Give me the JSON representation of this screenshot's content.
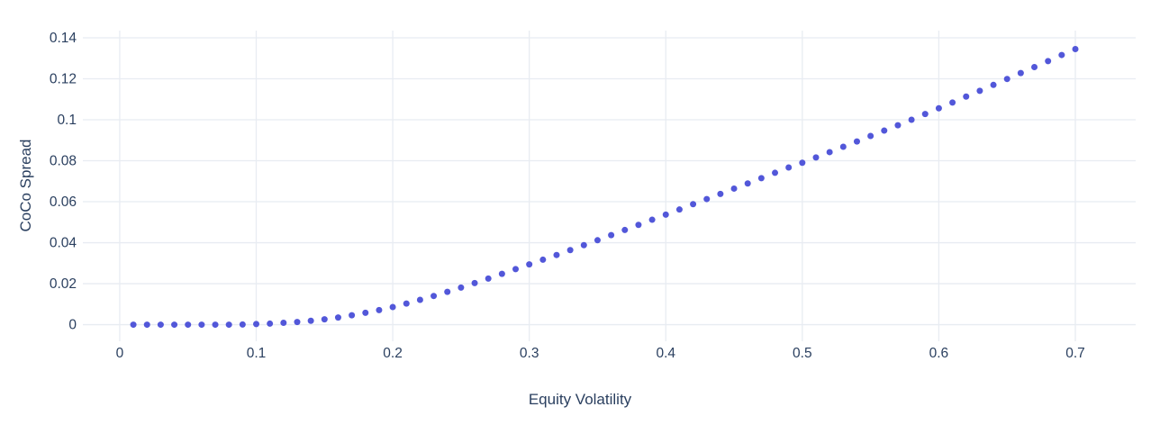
{
  "chart_data": {
    "type": "scatter",
    "title": "",
    "xlabel": "Equity Volatility",
    "ylabel": "CoCo Spread",
    "x": [
      0.01,
      0.02,
      0.03,
      0.04,
      0.05,
      0.06,
      0.07,
      0.08,
      0.09,
      0.1,
      0.11,
      0.12,
      0.13,
      0.14,
      0.15,
      0.16,
      0.17,
      0.18,
      0.19,
      0.2,
      0.21,
      0.22,
      0.23,
      0.24,
      0.25,
      0.26,
      0.27,
      0.28,
      0.29,
      0.3,
      0.31,
      0.32,
      0.33,
      0.34,
      0.35,
      0.36,
      0.37,
      0.38,
      0.39,
      0.4,
      0.41,
      0.42,
      0.43,
      0.44,
      0.45,
      0.46,
      0.47,
      0.48,
      0.49,
      0.5,
      0.51,
      0.52,
      0.53,
      0.54,
      0.55,
      0.56,
      0.57,
      0.58,
      0.59,
      0.6,
      0.61,
      0.62,
      0.63,
      0.64,
      0.65,
      0.66,
      0.67,
      0.68,
      0.69,
      0.7
    ],
    "y": [
      0,
      0,
      0,
      0,
      0,
      0,
      0,
      0,
      0.0001,
      0.0003,
      0.0005,
      0.0009,
      0.0013,
      0.0019,
      0.0026,
      0.0035,
      0.0046,
      0.0058,
      0.0071,
      0.0086,
      0.0103,
      0.0121,
      0.014,
      0.016,
      0.0181,
      0.0203,
      0.0225,
      0.0248,
      0.0271,
      0.0294,
      0.0317,
      0.034,
      0.0364,
      0.0388,
      0.0412,
      0.0437,
      0.0462,
      0.0487,
      0.0512,
      0.0537,
      0.0562,
      0.0588,
      0.0613,
      0.0638,
      0.0664,
      0.0689,
      0.0715,
      0.0741,
      0.0767,
      0.079,
      0.0816,
      0.0842,
      0.0868,
      0.0894,
      0.0921,
      0.0947,
      0.0973,
      0.1,
      0.1028,
      0.1056,
      0.1084,
      0.1113,
      0.1141,
      0.117,
      0.1199,
      0.1228,
      0.1257,
      0.1286,
      0.1316,
      0.1345
    ],
    "x_tick_values": [
      0,
      0.1,
      0.2,
      0.3,
      0.4,
      0.5,
      0.6,
      0.7
    ],
    "x_tick_labels": [
      "0",
      "0.1",
      "0.2",
      "0.3",
      "0.4",
      "0.5",
      "0.6",
      "0.7"
    ],
    "y_tick_values": [
      0,
      0.02,
      0.04,
      0.06,
      0.08,
      0.1,
      0.12,
      0.14
    ],
    "y_tick_labels": [
      "0",
      "0.02",
      "0.04",
      "0.06",
      "0.08",
      "0.1",
      "0.12",
      "0.14"
    ],
    "xlim": [
      -0.027,
      0.7442
    ],
    "ylim": [
      -0.0081,
      0.1435
    ],
    "grid": true,
    "legend": false,
    "marker_size_px": 7,
    "colors": {
      "marker": "#5257d9",
      "grid": "#e8ecf2",
      "text": "#2a3f5f",
      "background": "#ffffff"
    }
  }
}
